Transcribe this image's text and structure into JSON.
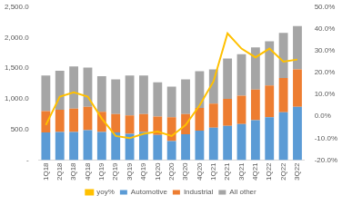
{
  "chart_data": {
    "type": "bar",
    "categories": [
      "1Q18",
      "2Q18",
      "3Q18",
      "4Q18",
      "1Q19",
      "2Q19",
      "3Q19",
      "4Q19",
      "1Q20",
      "2Q20",
      "3Q20",
      "4Q20",
      "1Q21",
      "2Q21",
      "3Q21",
      "4Q21",
      "1Q22",
      "2Q22",
      "3Q22"
    ],
    "series": [
      {
        "name": "Automotive",
        "color": "#5b9bd5",
        "type": "bar",
        "values": [
          450,
          460,
          460,
          490,
          460,
          450,
          430,
          460,
          410,
          310,
          420,
          480,
          530,
          560,
          590,
          650,
          700,
          780,
          870
        ]
      },
      {
        "name": "Industrial",
        "color": "#ed7d31",
        "type": "bar",
        "values": [
          350,
          360,
          380,
          380,
          330,
          300,
          300,
          290,
          300,
          390,
          330,
          370,
          390,
          440,
          460,
          500,
          520,
          560,
          610
        ]
      },
      {
        "name": "All other",
        "color": "#a5a5a5",
        "type": "bar",
        "values": [
          580,
          640,
          690,
          640,
          580,
          570,
          650,
          630,
          560,
          500,
          570,
          600,
          560,
          660,
          680,
          690,
          720,
          740,
          710
        ]
      },
      {
        "name": "yoy%",
        "color": "#ffc000",
        "type": "line",
        "axis": "y2",
        "values": [
          -4,
          9,
          11,
          9,
          -1,
          -9,
          -10,
          -8,
          -7,
          -9,
          -4,
          5,
          16,
          38,
          31,
          27,
          31,
          25,
          26
        ]
      }
    ],
    "ylim": [
      0,
      2500
    ],
    "yticks": [
      {
        "value": 0,
        "label": "-"
      },
      {
        "value": 500,
        "label": "500.0"
      },
      {
        "value": 1000,
        "label": "1,000.0"
      },
      {
        "value": 1500,
        "label": "1,500.0"
      },
      {
        "value": 2000,
        "label": "2,000.0"
      },
      {
        "value": 2500,
        "label": "2,500.0"
      }
    ],
    "y2lim": [
      -20,
      50
    ],
    "y2ticks": [
      {
        "value": -20,
        "label": "-20.0%"
      },
      {
        "value": -10,
        "label": "-10.0%"
      },
      {
        "value": 0,
        "label": "0.0%"
      },
      {
        "value": 10,
        "label": "10.0%"
      },
      {
        "value": 20,
        "label": "20.0%"
      },
      {
        "value": 30,
        "label": "30.0%"
      },
      {
        "value": 40,
        "label": "40.0%"
      },
      {
        "value": 50,
        "label": "50.0%"
      }
    ],
    "stacked": true,
    "grid": false,
    "legend": "bottom"
  }
}
